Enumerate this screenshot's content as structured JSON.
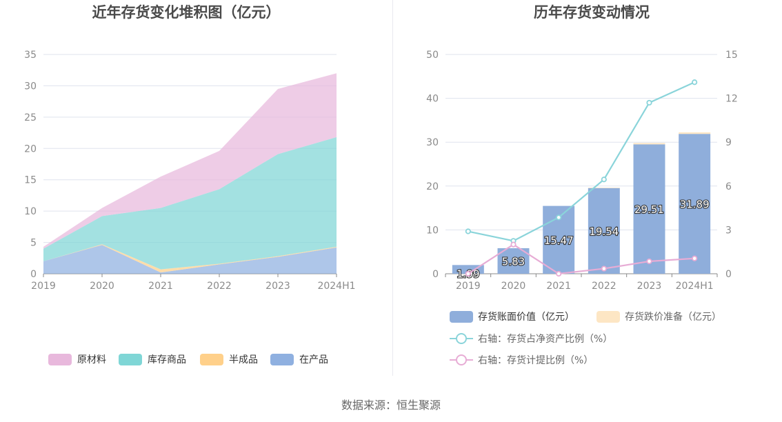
{
  "source_label": "数据来源：恒生聚源",
  "colors": {
    "raw_material": "#e8b8dc",
    "stock_goods": "#7fd6d6",
    "semi_finished": "#ffd08a",
    "in_process": "#8fb0e0",
    "book_value_bar": "#8faedb",
    "impairment_bar": "#fde6c4",
    "ratio_net_assets_line": "#8ad4da",
    "ratio_provision_line": "#e7acd5",
    "grid": "#dfe3ee",
    "axis": "#888888"
  },
  "chart_data": [
    {
      "type": "area",
      "stacked": true,
      "title": "近年存货变化堆积图（亿元）",
      "categories": [
        "2019",
        "2020",
        "2021",
        "2022",
        "2023",
        "2024H1"
      ],
      "ylim": [
        0,
        35
      ],
      "yticks": [
        "0",
        "5",
        "10",
        "15",
        "20",
        "25",
        "30",
        "35"
      ],
      "grid": true,
      "legend_position": "bottom",
      "series": [
        {
          "name": "在产品",
          "color_key": "in_process",
          "values": [
            2.0,
            4.6,
            0.2,
            1.5,
            2.7,
            4.2
          ]
        },
        {
          "name": "半成品",
          "color_key": "semi_finished",
          "values": [
            0.0,
            0.1,
            0.5,
            0.1,
            0.1,
            0.1
          ]
        },
        {
          "name": "库存商品",
          "color_key": "stock_goods",
          "values": [
            2.0,
            4.5,
            9.8,
            11.9,
            16.3,
            17.5
          ]
        },
        {
          "name": "原材料",
          "color_key": "raw_material",
          "values": [
            0.3,
            1.3,
            5.0,
            6.1,
            10.4,
            10.2
          ]
        }
      ],
      "legend_order": [
        "原材料",
        "库存商品",
        "半成品",
        "在产品"
      ]
    },
    {
      "type": "bar",
      "title": "历年存货变动情况",
      "categories": [
        "2019",
        "2020",
        "2021",
        "2022",
        "2023",
        "2024H1"
      ],
      "ylim_left": [
        0,
        50
      ],
      "yticks_left": [
        "0",
        "10",
        "20",
        "30",
        "40",
        "50"
      ],
      "ylim_right": [
        0,
        15
      ],
      "yticks_right": [
        "0",
        "3",
        "6",
        "9",
        "12",
        "15"
      ],
      "grid": true,
      "legend_position": "bottom",
      "series": [
        {
          "name": "存货账面价值（亿元）",
          "kind": "bar",
          "color_key": "book_value_bar",
          "values": [
            1.99,
            5.83,
            15.47,
            19.54,
            29.51,
            31.89
          ],
          "labels": [
            "1.99",
            "5.83",
            "15.47",
            "19.54",
            "29.51",
            "31.89"
          ]
        },
        {
          "name": "存货跌价准备（亿元）",
          "kind": "bar-stack",
          "color_key": "impairment_bar",
          "values": [
            0.0,
            0.0,
            0.0,
            0.1,
            0.3,
            0.35
          ]
        },
        {
          "name": "右轴：存货占净资产比例（%）",
          "kind": "line",
          "axis": "right",
          "color_key": "ratio_net_assets_line",
          "values": [
            2.9,
            2.25,
            3.85,
            6.45,
            11.7,
            13.1
          ]
        },
        {
          "name": "右轴：存货计提比例（%）",
          "kind": "line",
          "axis": "right",
          "color_key": "ratio_provision_line",
          "values": [
            0.0,
            2.0,
            0.0,
            0.35,
            0.85,
            1.05
          ]
        }
      ]
    }
  ]
}
